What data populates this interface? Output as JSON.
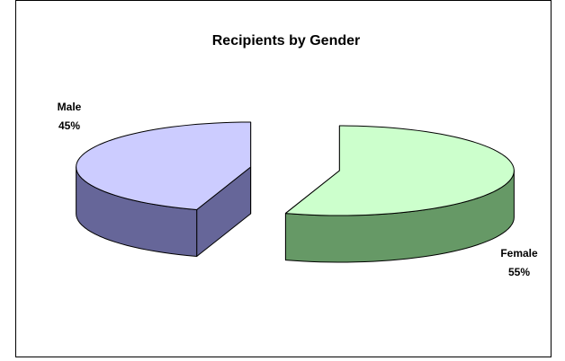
{
  "chart_data": {
    "type": "pie3d",
    "title": "Recipients by Gender",
    "categories": [
      "Female",
      "Male"
    ],
    "values": [
      55,
      45
    ],
    "value_labels": [
      "55%",
      "45%"
    ],
    "colors": [
      "#ccffcc",
      "#ccccff"
    ],
    "side_colors": [
      "#669966",
      "#666699"
    ]
  }
}
